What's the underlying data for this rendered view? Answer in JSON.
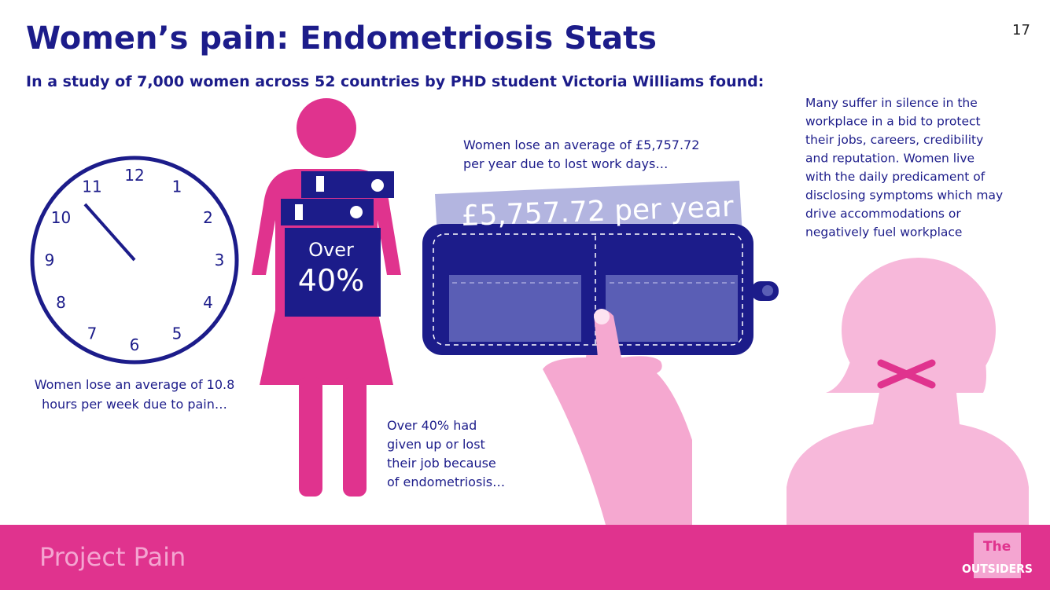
{
  "header": {
    "title": "Women’s pain: Endometriosis Stats",
    "subtitle": "In a study of 7,000 women across 52 countries by PHD student Victoria Williams found:",
    "page_number": "17"
  },
  "clock": {
    "numbers": [
      "12",
      "1",
      "2",
      "3",
      "4",
      "5",
      "6",
      "7",
      "8",
      "9",
      "10",
      "11"
    ],
    "caption": [
      "Women lose an average of 10.8",
      "hours per week due to pain…"
    ]
  },
  "figure": {
    "box_top": "Over",
    "box_value": "40%",
    "caption": [
      "Over 40% had",
      "given up or lost",
      "their job because",
      "of endometriosis…"
    ]
  },
  "wallet": {
    "card_text": "£5,757.72 per year",
    "caption": [
      "Women lose an average of £5,757.72",
      "per year due to lost work days…"
    ]
  },
  "silence": {
    "lines": [
      "Many suffer in silence in the",
      "workplace in a bid to protect",
      "their jobs, careers, credibility",
      "and reputation. Women live",
      "with the daily predicament of",
      "disclosing symptoms which may",
      "drive accommodations or",
      "negatively fuel workplace"
    ]
  },
  "footer": {
    "project": "Project Pain",
    "logo_top": "The",
    "logo_bottom": "OUTSIDERS"
  }
}
